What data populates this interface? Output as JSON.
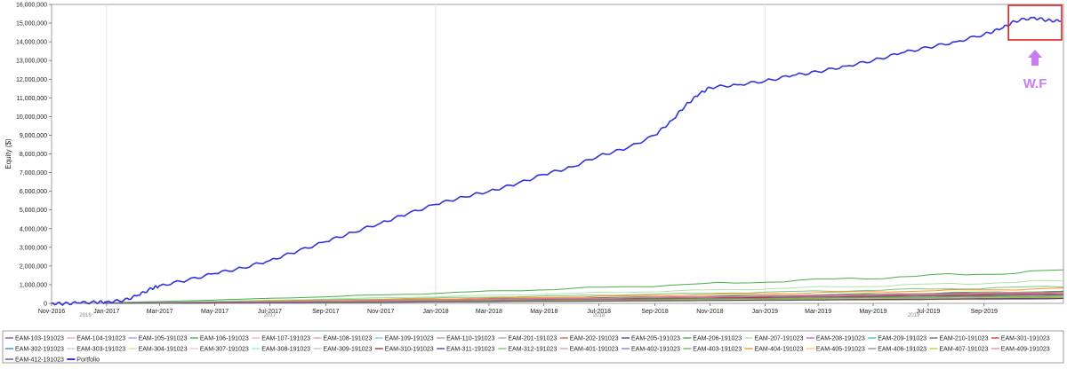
{
  "chart_data": {
    "type": "line",
    "ylabel": "Equity ($)",
    "ylim": [
      0,
      16000000
    ],
    "yticks": [
      0,
      1000000,
      2000000,
      3000000,
      4000000,
      5000000,
      6000000,
      7000000,
      8000000,
      9000000,
      10000000,
      11000000,
      12000000,
      13000000,
      14000000,
      15000000,
      16000000
    ],
    "ytick_labels": [
      "0",
      "1,000,000",
      "2,000,000",
      "3,000,000",
      "4,000,000",
      "5,000,000",
      "6,000,000",
      "7,000,000",
      "8,000,000",
      "9,000,000",
      "10,000,000",
      "11,000,000",
      "12,000,000",
      "13,000,000",
      "14,000,000",
      "15,000,000",
      "16,000,000"
    ],
    "xlim": [
      "2016-11-01",
      "2019-11-28"
    ],
    "xticks": [
      {
        "date": "2016-11-01",
        "label": "Nov-2016"
      },
      {
        "date": "2017-01-01",
        "label": "Jan-2017"
      },
      {
        "date": "2017-03-01",
        "label": "Mar-2017"
      },
      {
        "date": "2017-05-01",
        "label": "May-2017"
      },
      {
        "date": "2017-07-01",
        "label": "Jul-2017"
      },
      {
        "date": "2017-09-01",
        "label": "Sep-2017"
      },
      {
        "date": "2017-11-01",
        "label": "Nov-2017"
      },
      {
        "date": "2018-01-01",
        "label": "Jan-2018"
      },
      {
        "date": "2018-03-01",
        "label": "Mar-2018"
      },
      {
        "date": "2018-05-01",
        "label": "May-2018"
      },
      {
        "date": "2018-07-01",
        "label": "Jul-2018"
      },
      {
        "date": "2018-09-01",
        "label": "Sep-2018"
      },
      {
        "date": "2018-11-01",
        "label": "Nov-2018"
      },
      {
        "date": "2019-01-01",
        "label": "Jan-2019"
      },
      {
        "date": "2019-03-01",
        "label": "Mar-2019"
      },
      {
        "date": "2019-05-01",
        "label": "May-2019"
      },
      {
        "date": "2019-07-01",
        "label": "Jul-2019"
      },
      {
        "date": "2019-09-01",
        "label": "Sep-2019"
      }
    ],
    "year_labels": [
      {
        "date": "2016-11-01",
        "label": "2016"
      },
      {
        "date": "2017-07-01",
        "label": "2017"
      },
      {
        "date": "2018-07-01",
        "label": "2018"
      },
      {
        "date": "2019-06-15",
        "label": "2019"
      }
    ],
    "grid": true,
    "legend_position": "bottom",
    "portfolio": {
      "name": "Portfolio",
      "color": "#3333dd",
      "points": [
        [
          "2016-11-01",
          0
        ],
        [
          "2016-11-15",
          -20000
        ],
        [
          "2016-12-01",
          30000
        ],
        [
          "2016-12-20",
          60000
        ],
        [
          "2017-01-01",
          80000
        ],
        [
          "2017-01-20",
          160000
        ],
        [
          "2017-02-05",
          430000
        ],
        [
          "2017-02-20",
          800000
        ],
        [
          "2017-03-01",
          950000
        ],
        [
          "2017-04-01",
          1250000
        ],
        [
          "2017-05-01",
          1600000
        ],
        [
          "2017-06-01",
          1900000
        ],
        [
          "2017-07-01",
          2300000
        ],
        [
          "2017-08-01",
          2800000
        ],
        [
          "2017-09-01",
          3300000
        ],
        [
          "2017-10-01",
          3800000
        ],
        [
          "2017-11-01",
          4300000
        ],
        [
          "2017-12-01",
          4800000
        ],
        [
          "2018-01-01",
          5300000
        ],
        [
          "2018-02-01",
          5700000
        ],
        [
          "2018-03-01",
          6000000
        ],
        [
          "2018-04-01",
          6400000
        ],
        [
          "2018-05-01",
          6900000
        ],
        [
          "2018-06-01",
          7300000
        ],
        [
          "2018-07-01",
          7900000
        ],
        [
          "2018-08-01",
          8300000
        ],
        [
          "2018-09-01",
          9000000
        ],
        [
          "2018-09-20",
          9800000
        ],
        [
          "2018-10-05",
          10600000
        ],
        [
          "2018-10-20",
          11200000
        ],
        [
          "2018-11-01",
          11550000
        ],
        [
          "2018-12-01",
          11700000
        ],
        [
          "2019-01-01",
          11900000
        ],
        [
          "2019-02-01",
          12200000
        ],
        [
          "2019-03-01",
          12400000
        ],
        [
          "2019-04-01",
          12700000
        ],
        [
          "2019-05-01",
          13000000
        ],
        [
          "2019-06-01",
          13400000
        ],
        [
          "2019-07-01",
          13700000
        ],
        [
          "2019-08-01",
          14000000
        ],
        [
          "2019-09-01",
          14400000
        ],
        [
          "2019-09-20",
          14700000
        ],
        [
          "2019-10-05",
          15100000
        ],
        [
          "2019-10-25",
          15300000
        ],
        [
          "2019-11-10",
          15150000
        ],
        [
          "2019-11-25",
          15100000
        ]
      ]
    },
    "series": [
      {
        "name": "EAM-103-191023",
        "color": "#6a3d9a",
        "final": 300000
      },
      {
        "name": "EAM-104-191023",
        "color": "#fb9a99",
        "final": 500000
      },
      {
        "name": "EAM-105-191023",
        "color": "#8888ee",
        "final": 420000
      },
      {
        "name": "EAM-106-191023",
        "color": "#33a02c",
        "final": 650000
      },
      {
        "name": "EAM-107-191023",
        "color": "#ff99cc",
        "final": 380000
      },
      {
        "name": "EAM-108-191023",
        "color": "#e78ac3",
        "final": 250000
      },
      {
        "name": "EAM-109-191023",
        "color": "#66ccee",
        "final": 330000
      },
      {
        "name": "EAM-110-191023",
        "color": "#bc80bd",
        "final": 450000
      },
      {
        "name": "EAM-201-191023",
        "color": "#999999",
        "final": 280000
      },
      {
        "name": "EAM-202-191023",
        "color": "#b15928",
        "final": 520000
      },
      {
        "name": "EAM-205-191023",
        "color": "#1f3c88",
        "final": 600000
      },
      {
        "name": "EAM-206-191023",
        "color": "#2ca02c",
        "final": 1750000
      },
      {
        "name": "EAM-207-191023",
        "color": "#b2df8a",
        "final": 350000
      },
      {
        "name": "EAM-208-191023",
        "color": "#cc44cc",
        "final": 260000
      },
      {
        "name": "EAM-209-191023",
        "color": "#17becf",
        "final": 470000
      },
      {
        "name": "EAM-210-191023",
        "color": "#555555",
        "final": 310000
      },
      {
        "name": "EAM-301-191023",
        "color": "#e31a1c",
        "final": 580000
      },
      {
        "name": "EAM-302-191023",
        "color": "#1f78b4",
        "final": 240000
      },
      {
        "name": "EAM-303-191023",
        "color": "#a6dba0",
        "final": 1200000
      },
      {
        "name": "EAM-304-191023",
        "color": "#dbdb8d",
        "final": 360000
      },
      {
        "name": "EAM-307-191023",
        "color": "#f7b6d2",
        "final": 290000
      },
      {
        "name": "EAM-308-191023",
        "color": "#9edae5",
        "final": 410000
      },
      {
        "name": "EAM-309-191023",
        "color": "#c5b0d5",
        "final": 340000
      },
      {
        "name": "EAM-310-191023",
        "color": "#8c1c13",
        "final": 480000
      },
      {
        "name": "EAM-311-191023",
        "color": "#2a2a8a",
        "final": 270000
      },
      {
        "name": "EAM-312-191023",
        "color": "#66bb66",
        "final": 900000
      },
      {
        "name": "EAM-401-191023",
        "color": "#c49c94",
        "final": 620000
      },
      {
        "name": "EAM-402-191023",
        "color": "#9467bd",
        "final": 300000
      },
      {
        "name": "EAM-403-191023",
        "color": "#4daf4a",
        "final": 390000
      },
      {
        "name": "EAM-404-191023",
        "color": "#ff7f0e",
        "final": 800000
      },
      {
        "name": "EAM-405-191023",
        "color": "#ffbb78",
        "final": 230000
      },
      {
        "name": "EAM-406-191023",
        "color": "#7f7f7f",
        "final": 440000
      },
      {
        "name": "EAM-407-191023",
        "color": "#bcbd22",
        "final": 320000
      },
      {
        "name": "EAM-409-191023",
        "color": "#e377c2",
        "final": 560000
      },
      {
        "name": "EAM-412-191023",
        "color": "#393b79",
        "final": 260000
      }
    ],
    "annotation": {
      "text": "W.F",
      "color": "#c77cf4",
      "box_color": "#dd2222",
      "box_range": [
        "2019-09-28",
        "2019-11-28"
      ]
    }
  }
}
